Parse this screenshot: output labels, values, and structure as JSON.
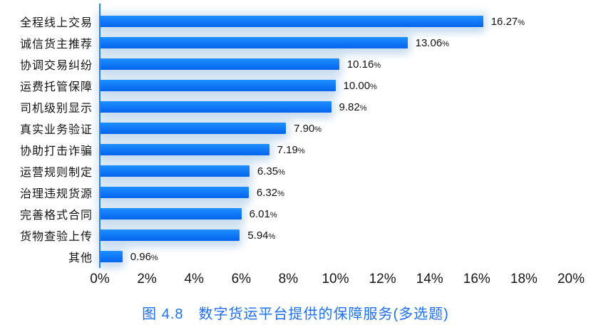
{
  "chart_data": {
    "type": "bar",
    "orientation": "horizontal",
    "title": "图 4.8　数字货运平台提供的保障服务(多选题)",
    "categories": [
      "全程线上交易",
      "诚信货主推荐",
      "协调交易纠纷",
      "运费托管保障",
      "司机级别显示",
      "真实业务验证",
      "协助打击诈骗",
      "运营规则制定",
      "治理违规货源",
      "完善格式合同",
      "货物查验上传",
      "其他"
    ],
    "values": [
      16.27,
      13.06,
      10.16,
      10.0,
      9.82,
      7.9,
      7.19,
      6.35,
      6.32,
      6.01,
      5.94,
      0.96
    ],
    "value_labels": [
      "16.27",
      "13.06",
      "10.16",
      "10.00",
      "9.82",
      "7.90",
      "7.19",
      "6.35",
      "6.32",
      "6.01",
      "5.94",
      "0.96"
    ],
    "value_suffix": "%",
    "xlabel": "",
    "ylabel": "",
    "xlim": [
      0,
      20
    ],
    "x_ticks": [
      "0%",
      "2%",
      "4%",
      "6%",
      "8%",
      "10%",
      "12%",
      "14%",
      "16%",
      "18%",
      "20%"
    ],
    "grid": false,
    "legend": false,
    "colors": {
      "bar_gradient_top": "#1e8fff",
      "bar_gradient_bottom": "#0464ed",
      "bar_glow": "rgba(150,190,226,0.4)",
      "axis_line": "#1e82f5",
      "title": "#1f6ff2",
      "text": "#141414"
    }
  }
}
